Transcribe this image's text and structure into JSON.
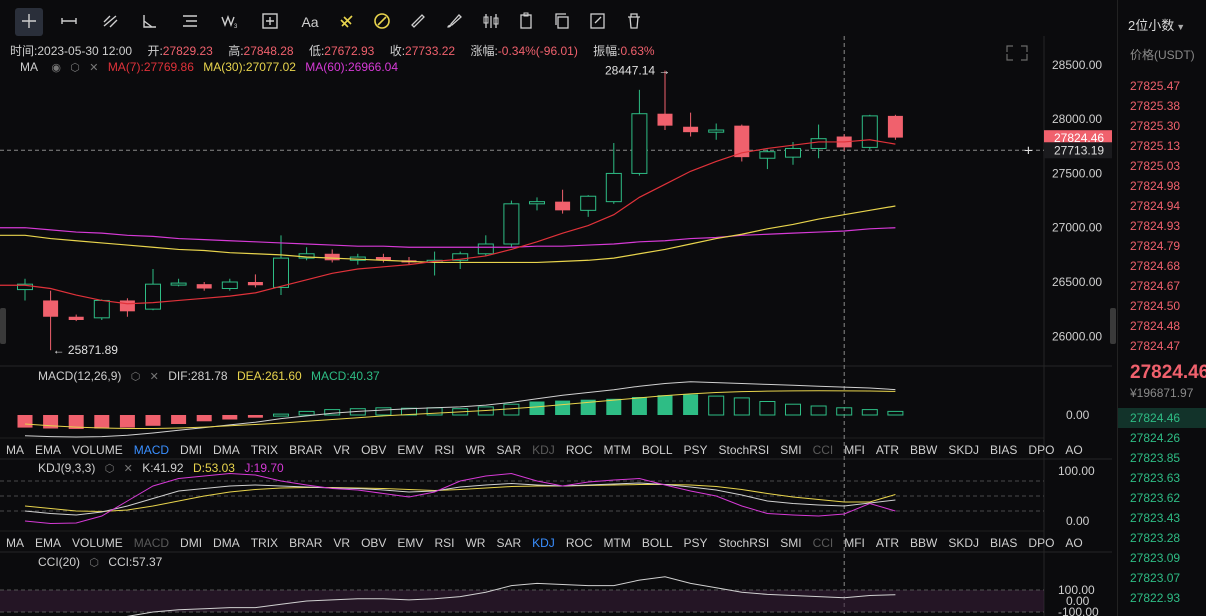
{
  "toolbar": {
    "tools": [
      {
        "name": "crosshair-icon",
        "active": true
      },
      {
        "name": "horizontal-line-icon"
      },
      {
        "name": "trend-line-icon"
      },
      {
        "name": "angle-icon"
      },
      {
        "name": "parallel-lines-icon"
      },
      {
        "name": "wave-icon"
      },
      {
        "name": "add-shape-icon"
      },
      {
        "name": "text-icon",
        "label": "Aa"
      },
      {
        "name": "magnet-icon"
      },
      {
        "name": "lock-icon"
      },
      {
        "name": "ruler-icon"
      },
      {
        "name": "brush-icon"
      },
      {
        "name": "candle-settings-icon"
      },
      {
        "name": "clipboard-icon"
      },
      {
        "name": "copy-icon"
      },
      {
        "name": "edit-icon"
      },
      {
        "name": "trash-icon"
      }
    ]
  },
  "ohlc": {
    "time_label": "时间:",
    "time": "2023-05-30 12:00",
    "open_label": "开:",
    "open": "27829.23",
    "high_label": "高:",
    "high": "27848.28",
    "low_label": "低:",
    "low": "27672.93",
    "close_label": "收:",
    "close": "27733.22",
    "change_label": "涨幅:",
    "change": "-0.34%(-96.01)",
    "amp_label": "振幅:",
    "amp": "0.63%"
  },
  "ma_legend": {
    "name": "MA",
    "ma7": "MA(7):27769.86",
    "ma30": "MA(30):27077.02",
    "ma60": "MA(60):26966.04"
  },
  "price_axis": {
    "labels": [
      "28500.00",
      "28000.00",
      "27500.00",
      "27000.00",
      "26500.00",
      "26000.00"
    ],
    "current_tag": "27824.46",
    "crosshair_tag": "27713.19"
  },
  "annotations": {
    "high": "28447.14 →",
    "low": "← 25871.89"
  },
  "macd_legend": {
    "name": "MACD(12,26,9)",
    "dif": "DIF:281.78",
    "dea": "DEA:261.60",
    "macd": "MACD:40.37",
    "axis_zero": "0.00"
  },
  "kdj_legend": {
    "name": "KDJ(9,3,3)",
    "k": "K:41.92",
    "d": "D:53.03",
    "j": "J:19.70",
    "axis_100": "100.00",
    "axis_0": "0.00"
  },
  "cci_legend": {
    "name": "CCI(20)",
    "cci": "CCI:57.37",
    "axis_100": "100.00",
    "axis_0": "0.00",
    "axis_m100": "-100.00"
  },
  "indicator_tabs_1": [
    "MA",
    "EMA",
    "VOLUME",
    "MACD",
    "DMI",
    "DMA",
    "TRIX",
    "BRAR",
    "VR",
    "OBV",
    "EMV",
    "RSI",
    "WR",
    "SAR",
    "KDJ",
    "ROC",
    "MTM",
    "BOLL",
    "PSY",
    "StochRSI",
    "SMI",
    "CCI",
    "MFI",
    "ATR",
    "BBW",
    "SKDJ",
    "BIAS",
    "DPO",
    "AO"
  ],
  "indicator_tabs_1_active": "MACD",
  "indicator_tabs_1_disabled": [
    "KDJ",
    "CCI"
  ],
  "indicator_tabs_2": [
    "MA",
    "EMA",
    "VOLUME",
    "MACD",
    "DMI",
    "DMA",
    "TRIX",
    "BRAR",
    "VR",
    "OBV",
    "EMV",
    "RSI",
    "WR",
    "SAR",
    "KDJ",
    "ROC",
    "MTM",
    "BOLL",
    "PSY",
    "StochRSI",
    "SMI",
    "CCI",
    "MFI",
    "ATR",
    "BBW",
    "SKDJ",
    "BIAS",
    "DPO",
    "AO"
  ],
  "indicator_tabs_2_active": "KDJ",
  "indicator_tabs_2_disabled": [
    "MACD",
    "CCI"
  ],
  "order_book": {
    "decimal_select": "2位小数",
    "price_header": "价格(USDT)",
    "asks": [
      "27825.47",
      "27825.38",
      "27825.30",
      "27825.13",
      "27825.03",
      "27824.98",
      "27824.94",
      "27824.93",
      "27824.79",
      "27824.68",
      "27824.67",
      "27824.50",
      "27824.48",
      "27824.47"
    ],
    "last_price": "27824.46",
    "cny_price": "¥196871.97",
    "bids": [
      "27824.46",
      "27824.26",
      "27823.85",
      "27823.63",
      "27823.62",
      "27823.43",
      "27823.28",
      "27823.09",
      "27823.07",
      "27822.93"
    ]
  },
  "colors": {
    "up": "#2ebd85",
    "down": "#f0616d",
    "ma7": "#e0323a",
    "ma30": "#e8d44d",
    "ma60": "#d63ad6",
    "dif": "#d0d0d0",
    "dea": "#e8d44d",
    "kdj_k": "#d0d0d0",
    "kdj_d": "#e8d44d",
    "kdj_j": "#d63ad6"
  },
  "chart_data": {
    "type": "candlestick",
    "price_range": [
      25800,
      28600
    ],
    "candles": [
      {
        "o": 26430,
        "h": 26530,
        "l": 26330,
        "c": 26480
      },
      {
        "o": 26330,
        "h": 26420,
        "l": 25872,
        "c": 26180
      },
      {
        "o": 26180,
        "h": 26200,
        "l": 26140,
        "c": 26150
      },
      {
        "o": 26170,
        "h": 26340,
        "l": 26150,
        "c": 26330
      },
      {
        "o": 26330,
        "h": 26350,
        "l": 26180,
        "c": 26230
      },
      {
        "o": 26250,
        "h": 26620,
        "l": 26240,
        "c": 26480
      },
      {
        "o": 26480,
        "h": 26530,
        "l": 26460,
        "c": 26490
      },
      {
        "o": 26480,
        "h": 26500,
        "l": 26420,
        "c": 26440
      },
      {
        "o": 26440,
        "h": 26530,
        "l": 26420,
        "c": 26500
      },
      {
        "o": 26500,
        "h": 26570,
        "l": 26450,
        "c": 26470
      },
      {
        "o": 26450,
        "h": 26930,
        "l": 26380,
        "c": 26720
      },
      {
        "o": 26720,
        "h": 26820,
        "l": 26700,
        "c": 26760
      },
      {
        "o": 26760,
        "h": 26800,
        "l": 26680,
        "c": 26700
      },
      {
        "o": 26700,
        "h": 26760,
        "l": 26660,
        "c": 26730
      },
      {
        "o": 26730,
        "h": 26760,
        "l": 26680,
        "c": 26700
      },
      {
        "o": 26700,
        "h": 26730,
        "l": 26660,
        "c": 26680
      },
      {
        "o": 26680,
        "h": 26780,
        "l": 26560,
        "c": 26700
      },
      {
        "o": 26700,
        "h": 26780,
        "l": 26620,
        "c": 26760
      },
      {
        "o": 26760,
        "h": 26930,
        "l": 26740,
        "c": 26850
      },
      {
        "o": 26850,
        "h": 27250,
        "l": 26820,
        "c": 27220
      },
      {
        "o": 27220,
        "h": 27280,
        "l": 27160,
        "c": 27240
      },
      {
        "o": 27240,
        "h": 27350,
        "l": 27130,
        "c": 27160
      },
      {
        "o": 27160,
        "h": 27300,
        "l": 27100,
        "c": 27290
      },
      {
        "o": 27240,
        "h": 27780,
        "l": 27220,
        "c": 27500
      },
      {
        "o": 27500,
        "h": 28270,
        "l": 27480,
        "c": 28050
      },
      {
        "o": 28050,
        "h": 28447,
        "l": 27900,
        "c": 27940
      },
      {
        "o": 27930,
        "h": 28060,
        "l": 27840,
        "c": 27880
      },
      {
        "o": 27880,
        "h": 27960,
        "l": 27810,
        "c": 27900
      },
      {
        "o": 27940,
        "h": 27950,
        "l": 27610,
        "c": 27650
      },
      {
        "o": 27640,
        "h": 27720,
        "l": 27540,
        "c": 27700
      },
      {
        "o": 27650,
        "h": 27790,
        "l": 27580,
        "c": 27730
      },
      {
        "o": 27730,
        "h": 27950,
        "l": 27640,
        "c": 27820
      },
      {
        "o": 27840,
        "h": 27860,
        "l": 27710,
        "c": 27740
      },
      {
        "o": 27740,
        "h": 28040,
        "l": 27720,
        "c": 28030
      },
      {
        "o": 28030,
        "h": 28040,
        "l": 27810,
        "c": 27830
      }
    ],
    "ma7": [
      26470,
      26440,
      26380,
      26330,
      26300,
      26310,
      26330,
      26350,
      26370,
      26400,
      26460,
      26520,
      26580,
      26620,
      26640,
      26660,
      26690,
      26710,
      26740,
      26800,
      26870,
      26950,
      27020,
      27120,
      27280,
      27400,
      27520,
      27610,
      27690,
      27730,
      27760,
      27790,
      27790,
      27810,
      27770
    ],
    "ma30": [
      26930,
      26900,
      26880,
      26860,
      26840,
      26820,
      26800,
      26790,
      26770,
      26760,
      26750,
      26730,
      26720,
      26710,
      26700,
      26690,
      26680,
      26680,
      26680,
      26680,
      26680,
      26690,
      26700,
      26720,
      26760,
      26800,
      26850,
      26900,
      26940,
      26990,
      27030,
      27080,
      27120,
      27160,
      27200
    ],
    "ma60": [
      27000,
      26980,
      26960,
      26950,
      26930,
      26920,
      26900,
      26890,
      26880,
      26870,
      26860,
      26850,
      26840,
      26830,
      26830,
      26820,
      26820,
      26820,
      26820,
      26820,
      26830,
      26830,
      26840,
      26850,
      26870,
      26880,
      26900,
      26910,
      26930,
      26940,
      26950,
      26960,
      26970,
      26990,
      27000
    ],
    "macd_hist": [
      -140,
      -150,
      -155,
      -150,
      -140,
      -120,
      -100,
      -70,
      -50,
      -30,
      10,
      40,
      60,
      70,
      80,
      75,
      80,
      70,
      90,
      120,
      150,
      160,
      170,
      180,
      200,
      220,
      230,
      210,
      190,
      150,
      120,
      100,
      80,
      60,
      40
    ],
    "macd_dif": [
      -230,
      -240,
      -245,
      -240,
      -225,
      -200,
      -170,
      -140,
      -110,
      -80,
      -40,
      -10,
      20,
      40,
      55,
      70,
      80,
      90,
      110,
      140,
      180,
      220,
      250,
      280,
      320,
      350,
      370,
      360,
      350,
      340,
      330,
      320,
      310,
      300,
      282
    ],
    "macd_dea": [
      -100,
      -120,
      -135,
      -145,
      -150,
      -150,
      -145,
      -135,
      -120,
      -105,
      -90,
      -70,
      -50,
      -30,
      -10,
      5,
      20,
      35,
      50,
      70,
      90,
      115,
      140,
      165,
      190,
      215,
      235,
      250,
      260,
      265,
      268,
      270,
      268,
      266,
      262
    ],
    "kdj_k": [
      20,
      15,
      12,
      18,
      30,
      45,
      60,
      65,
      70,
      72,
      70,
      68,
      66,
      65,
      62,
      58,
      60,
      68,
      72,
      75,
      72,
      70,
      72,
      74,
      76,
      73,
      68,
      62,
      52,
      40,
      35,
      32,
      30,
      36,
      42
    ],
    "kdj_d": [
      30,
      25,
      20,
      19,
      22,
      30,
      40,
      50,
      58,
      63,
      66,
      67,
      67,
      66,
      65,
      63,
      61,
      63,
      66,
      69,
      70,
      70,
      71,
      72,
      73,
      73,
      72,
      69,
      63,
      55,
      48,
      43,
      38,
      38,
      53
    ],
    "kdj_j": [
      0,
      -5,
      -4,
      10,
      40,
      70,
      85,
      90,
      95,
      92,
      80,
      72,
      65,
      62,
      55,
      48,
      58,
      80,
      90,
      95,
      80,
      70,
      78,
      82,
      85,
      72,
      60,
      50,
      30,
      15,
      12,
      10,
      14,
      35,
      20
    ],
    "cci": [
      -230,
      -240,
      -230,
      -180,
      -140,
      -100,
      -80,
      -70,
      -60,
      -60,
      -30,
      0,
      10,
      20,
      20,
      10,
      20,
      40,
      80,
      140,
      160,
      150,
      140,
      140,
      190,
      220,
      160,
      120,
      80,
      60,
      50,
      40,
      30,
      50,
      57
    ]
  }
}
